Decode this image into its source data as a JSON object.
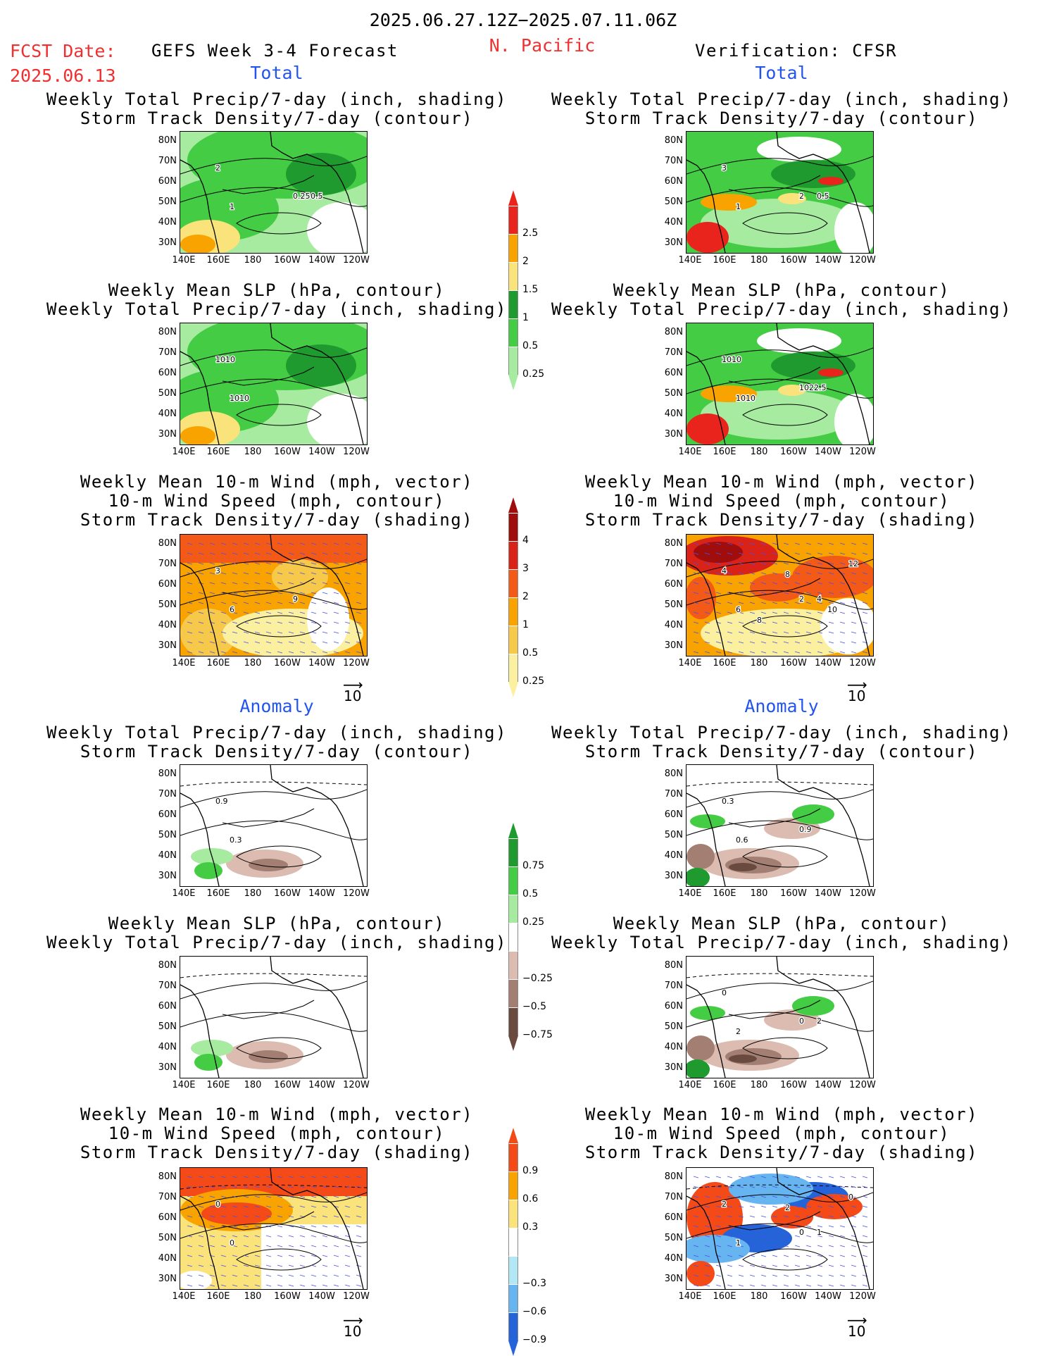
{
  "header": {
    "period": "2025.06.27.12Z−2025.07.11.06Z",
    "region": "N. Pacific",
    "fcst_label": "FCST Date:",
    "fcst_date": "2025.06.13",
    "model": "GEFS Week 3-4 Forecast",
    "verification": "Verification: CFSR"
  },
  "sections": {
    "total": "Total",
    "anomaly": "Anomaly"
  },
  "titles": {
    "precip_storm": [
      "Weekly Total Precip/7-day (inch, shading)",
      "Storm Track Density/7-day (contour)"
    ],
    "slp_precip": [
      "Weekly Mean SLP (hPa, contour)",
      "Weekly Total Precip/7-day (inch, shading)"
    ],
    "wind_storm": [
      "Weekly Mean 10-m Wind (mph, vector)",
      "10-m Wind Speed (mph, contour)",
      "Storm Track Density/7-day (shading)"
    ]
  },
  "axes": {
    "lat": [
      "80N",
      "70N",
      "60N",
      "50N",
      "40N",
      "30N"
    ],
    "lon": [
      "140E",
      "160E",
      "180",
      "160W",
      "140W",
      "120W"
    ]
  },
  "vector_ref": "10",
  "colorbars": {
    "precip_total": {
      "labels": [
        "2.5",
        "2",
        "1.5",
        "1",
        "0.5",
        "0.25"
      ],
      "colors": [
        "#e8241c",
        "#f8a300",
        "#fbe37c",
        "#1e9a2e",
        "#44cc44",
        "#a6eba0"
      ]
    },
    "storm_total": {
      "labels": [
        "4",
        "3",
        "2",
        "1",
        "0.5",
        "0.25"
      ],
      "colors": [
        "#a00d0d",
        "#d92218",
        "#f35a18",
        "#f8a300",
        "#f7c94a",
        "#fbf0a0"
      ]
    },
    "precip_anom": {
      "labels": [
        "0.75",
        "0.5",
        "0.25",
        "−0.25",
        "−0.5",
        "−0.75"
      ],
      "colors": [
        "#1e9a2e",
        "#44cc44",
        "#a6eba0",
        "#ffffff",
        "#dcbcb0",
        "#a27f72",
        "#6a4a3e"
      ]
    },
    "storm_anom": {
      "labels": [
        "0.9",
        "0.6",
        "0.3",
        "−0.3",
        "−0.6",
        "−0.9"
      ],
      "colors": [
        "#f34a18",
        "#f8a300",
        "#fbe37c",
        "#ffffff",
        "#b2e8f5",
        "#66b4f0",
        "#2464d8"
      ]
    }
  },
  "map_labels": {
    "l1": [
      "2",
      "1",
      "0.25",
      "0.5"
    ],
    "r1": [
      "3",
      "1",
      "2",
      "0.5"
    ],
    "l2": [
      "1010",
      "1010"
    ],
    "r2": [
      "1010",
      "1010",
      "1022.5"
    ],
    "l3": [
      "3",
      "6",
      "9"
    ],
    "r3": [
      "4",
      "6",
      "2",
      "4",
      "8",
      "12",
      "8",
      "10"
    ],
    "l4": [
      "0.9",
      "0.3"
    ],
    "r4": [
      "0.3",
      "0.6",
      "0.9"
    ],
    "l5": [],
    "r5": [
      "0",
      "2",
      "0",
      "2"
    ],
    "l6": [
      "0",
      "0"
    ],
    "r6": [
      "2",
      "1",
      "0",
      "1",
      "2",
      "0"
    ]
  }
}
